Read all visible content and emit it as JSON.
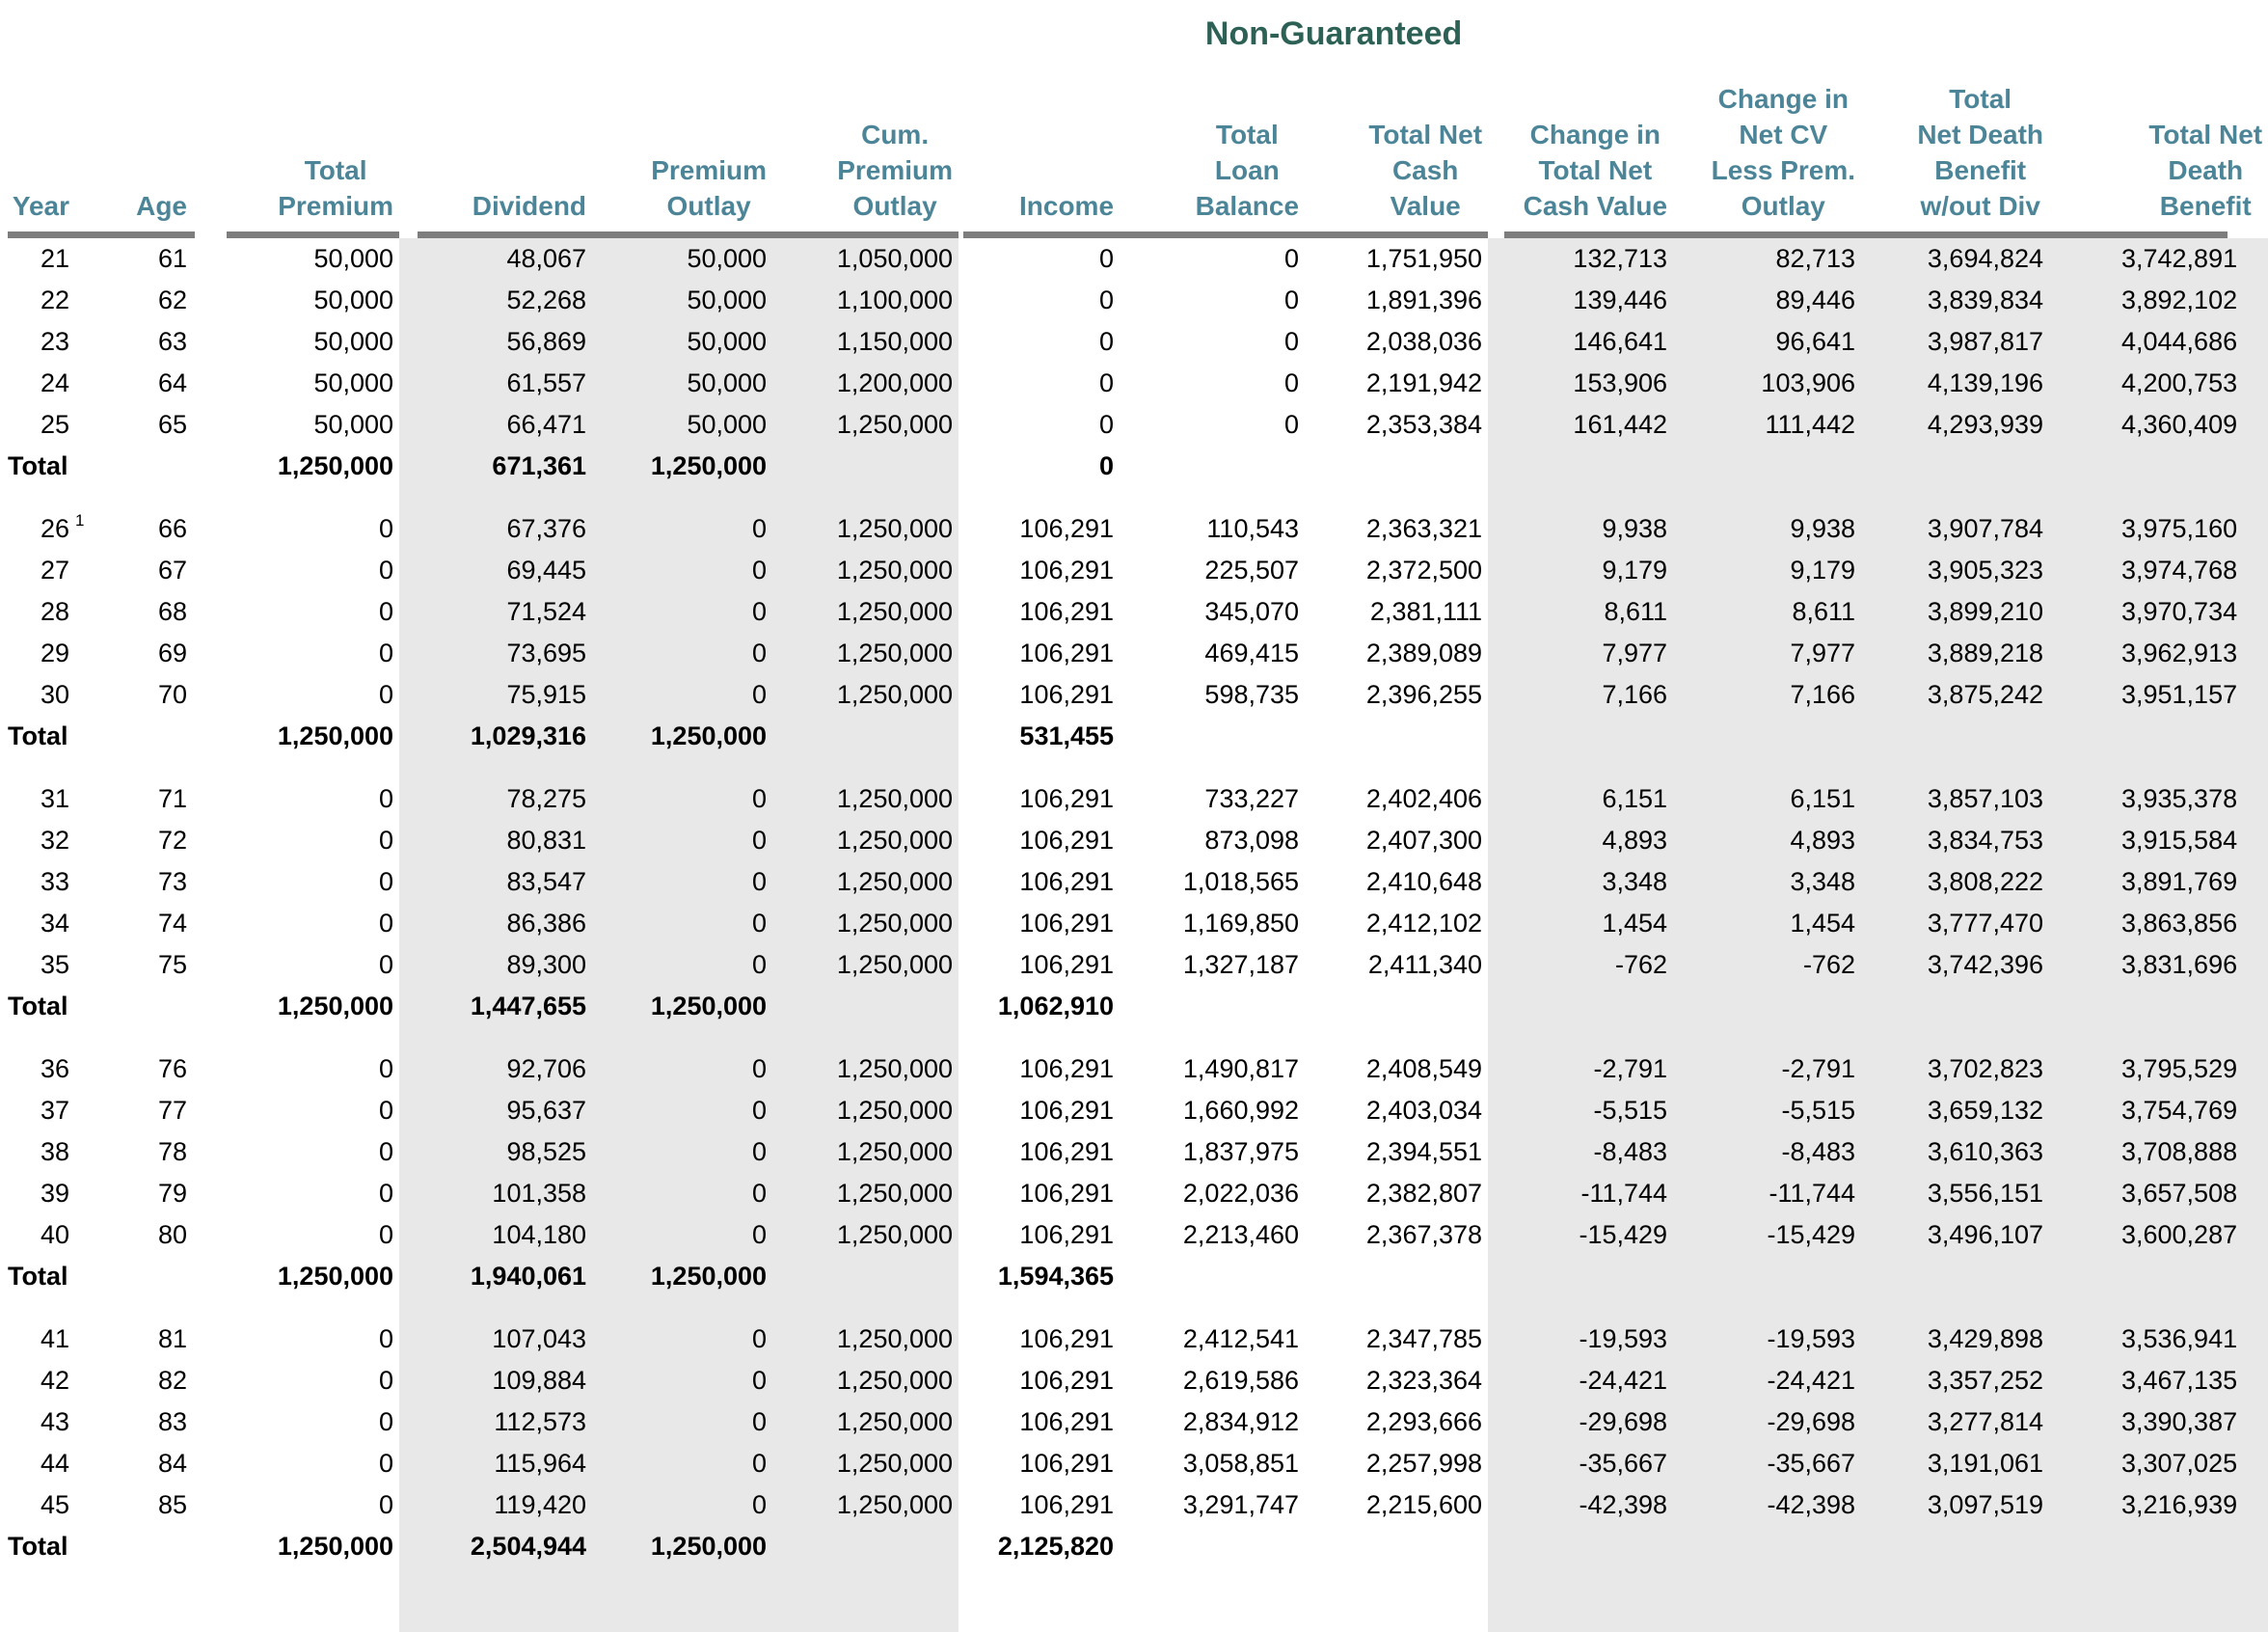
{
  "title": "Non-Guaranteed",
  "accent_colors": {
    "title_green": "#2d6155",
    "header_teal": "#4d8598",
    "rule_gray": "#7d7d7d",
    "band_gray": "#e8e8e8"
  },
  "columns": [
    {
      "id": "year",
      "label": "Year"
    },
    {
      "id": "age",
      "label": "Age"
    },
    {
      "id": "total-premium",
      "label": "Total\nPremium"
    },
    {
      "id": "dividend",
      "label": "Dividend"
    },
    {
      "id": "premium-outlay",
      "label": "Premium\nOutlay"
    },
    {
      "id": "cum-premium-outlay",
      "label": "Cum.\nPremium\nOutlay"
    },
    {
      "id": "income",
      "label": "Income"
    },
    {
      "id": "total-loan-balance",
      "label": "Total\nLoan\nBalance"
    },
    {
      "id": "total-net-cash-value",
      "label": "Total Net\nCash\nValue"
    },
    {
      "id": "change-in-total-net-cash-value",
      "label": "Change in\nTotal Net\nCash Value"
    },
    {
      "id": "change-in-net-cv-less-prem-outlay",
      "label": "Change in\nNet CV\nLess Prem.\nOutlay"
    },
    {
      "id": "total-net-death-benefit-wout-div",
      "label": "Total\nNet Death\nBenefit\nw/out Div"
    },
    {
      "id": "total-net-death-benefit",
      "label": "Total Net\nDeath\nBenefit"
    }
  ],
  "total_label": "Total",
  "groups": [
    {
      "rows": [
        {
          "cells": [
            "21",
            "61",
            "50,000",
            "48,067",
            "50,000",
            "1,050,000",
            "0",
            "0",
            "1,751,950",
            "132,713",
            "82,713",
            "3,694,824",
            "3,742,891"
          ]
        },
        {
          "cells": [
            "22",
            "62",
            "50,000",
            "52,268",
            "50,000",
            "1,100,000",
            "0",
            "0",
            "1,891,396",
            "139,446",
            "89,446",
            "3,839,834",
            "3,892,102"
          ]
        },
        {
          "cells": [
            "23",
            "63",
            "50,000",
            "56,869",
            "50,000",
            "1,150,000",
            "0",
            "0",
            "2,038,036",
            "146,641",
            "96,641",
            "3,987,817",
            "4,044,686"
          ]
        },
        {
          "cells": [
            "24",
            "64",
            "50,000",
            "61,557",
            "50,000",
            "1,200,000",
            "0",
            "0",
            "2,191,942",
            "153,906",
            "103,906",
            "4,139,196",
            "4,200,753"
          ]
        },
        {
          "cells": [
            "25",
            "65",
            "50,000",
            "66,471",
            "50,000",
            "1,250,000",
            "0",
            "0",
            "2,353,384",
            "161,442",
            "111,442",
            "4,293,939",
            "4,360,409"
          ]
        }
      ],
      "total": {
        "cells": [
          "1,250,000",
          "671,361",
          "1,250,000",
          "",
          "0",
          "",
          "",
          "",
          "",
          "",
          ""
        ]
      }
    },
    {
      "rows": [
        {
          "sup": "1",
          "cells": [
            "26",
            "66",
            "0",
            "67,376",
            "0",
            "1,250,000",
            "106,291",
            "110,543",
            "2,363,321",
            "9,938",
            "9,938",
            "3,907,784",
            "3,975,160"
          ]
        },
        {
          "cells": [
            "27",
            "67",
            "0",
            "69,445",
            "0",
            "1,250,000",
            "106,291",
            "225,507",
            "2,372,500",
            "9,179",
            "9,179",
            "3,905,323",
            "3,974,768"
          ]
        },
        {
          "cells": [
            "28",
            "68",
            "0",
            "71,524",
            "0",
            "1,250,000",
            "106,291",
            "345,070",
            "2,381,111",
            "8,611",
            "8,611",
            "3,899,210",
            "3,970,734"
          ]
        },
        {
          "cells": [
            "29",
            "69",
            "0",
            "73,695",
            "0",
            "1,250,000",
            "106,291",
            "469,415",
            "2,389,089",
            "7,977",
            "7,977",
            "3,889,218",
            "3,962,913"
          ]
        },
        {
          "cells": [
            "30",
            "70",
            "0",
            "75,915",
            "0",
            "1,250,000",
            "106,291",
            "598,735",
            "2,396,255",
            "7,166",
            "7,166",
            "3,875,242",
            "3,951,157"
          ]
        }
      ],
      "total": {
        "cells": [
          "1,250,000",
          "1,029,316",
          "1,250,000",
          "",
          "531,455",
          "",
          "",
          "",
          "",
          "",
          ""
        ]
      }
    },
    {
      "rows": [
        {
          "cells": [
            "31",
            "71",
            "0",
            "78,275",
            "0",
            "1,250,000",
            "106,291",
            "733,227",
            "2,402,406",
            "6,151",
            "6,151",
            "3,857,103",
            "3,935,378"
          ]
        },
        {
          "cells": [
            "32",
            "72",
            "0",
            "80,831",
            "0",
            "1,250,000",
            "106,291",
            "873,098",
            "2,407,300",
            "4,893",
            "4,893",
            "3,834,753",
            "3,915,584"
          ]
        },
        {
          "cells": [
            "33",
            "73",
            "0",
            "83,547",
            "0",
            "1,250,000",
            "106,291",
            "1,018,565",
            "2,410,648",
            "3,348",
            "3,348",
            "3,808,222",
            "3,891,769"
          ]
        },
        {
          "cells": [
            "34",
            "74",
            "0",
            "86,386",
            "0",
            "1,250,000",
            "106,291",
            "1,169,850",
            "2,412,102",
            "1,454",
            "1,454",
            "3,777,470",
            "3,863,856"
          ]
        },
        {
          "cells": [
            "35",
            "75",
            "0",
            "89,300",
            "0",
            "1,250,000",
            "106,291",
            "1,327,187",
            "2,411,340",
            "-762",
            "-762",
            "3,742,396",
            "3,831,696"
          ]
        }
      ],
      "total": {
        "cells": [
          "1,250,000",
          "1,447,655",
          "1,250,000",
          "",
          "1,062,910",
          "",
          "",
          "",
          "",
          "",
          ""
        ]
      }
    },
    {
      "rows": [
        {
          "cells": [
            "36",
            "76",
            "0",
            "92,706",
            "0",
            "1,250,000",
            "106,291",
            "1,490,817",
            "2,408,549",
            "-2,791",
            "-2,791",
            "3,702,823",
            "3,795,529"
          ]
        },
        {
          "cells": [
            "37",
            "77",
            "0",
            "95,637",
            "0",
            "1,250,000",
            "106,291",
            "1,660,992",
            "2,403,034",
            "-5,515",
            "-5,515",
            "3,659,132",
            "3,754,769"
          ]
        },
        {
          "cells": [
            "38",
            "78",
            "0",
            "98,525",
            "0",
            "1,250,000",
            "106,291",
            "1,837,975",
            "2,394,551",
            "-8,483",
            "-8,483",
            "3,610,363",
            "3,708,888"
          ]
        },
        {
          "cells": [
            "39",
            "79",
            "0",
            "101,358",
            "0",
            "1,250,000",
            "106,291",
            "2,022,036",
            "2,382,807",
            "-11,744",
            "-11,744",
            "3,556,151",
            "3,657,508"
          ]
        },
        {
          "cells": [
            "40",
            "80",
            "0",
            "104,180",
            "0",
            "1,250,000",
            "106,291",
            "2,213,460",
            "2,367,378",
            "-15,429",
            "-15,429",
            "3,496,107",
            "3,600,287"
          ]
        }
      ],
      "total": {
        "cells": [
          "1,250,000",
          "1,940,061",
          "1,250,000",
          "",
          "1,594,365",
          "",
          "",
          "",
          "",
          "",
          ""
        ]
      }
    },
    {
      "rows": [
        {
          "cells": [
            "41",
            "81",
            "0",
            "107,043",
            "0",
            "1,250,000",
            "106,291",
            "2,412,541",
            "2,347,785",
            "-19,593",
            "-19,593",
            "3,429,898",
            "3,536,941"
          ]
        },
        {
          "cells": [
            "42",
            "82",
            "0",
            "109,884",
            "0",
            "1,250,000",
            "106,291",
            "2,619,586",
            "2,323,364",
            "-24,421",
            "-24,421",
            "3,357,252",
            "3,467,135"
          ]
        },
        {
          "cells": [
            "43",
            "83",
            "0",
            "112,573",
            "0",
            "1,250,000",
            "106,291",
            "2,834,912",
            "2,293,666",
            "-29,698",
            "-29,698",
            "3,277,814",
            "3,390,387"
          ]
        },
        {
          "cells": [
            "44",
            "84",
            "0",
            "115,964",
            "0",
            "1,250,000",
            "106,291",
            "3,058,851",
            "2,257,998",
            "-35,667",
            "-35,667",
            "3,191,061",
            "3,307,025"
          ]
        },
        {
          "cells": [
            "45",
            "85",
            "0",
            "119,420",
            "0",
            "1,250,000",
            "106,291",
            "3,291,747",
            "2,215,600",
            "-42,398",
            "-42,398",
            "3,097,519",
            "3,216,939"
          ]
        }
      ],
      "total": {
        "cells": [
          "1,250,000",
          "2,504,944",
          "1,250,000",
          "",
          "2,125,820",
          "",
          "",
          "",
          "",
          "",
          ""
        ]
      }
    }
  ]
}
